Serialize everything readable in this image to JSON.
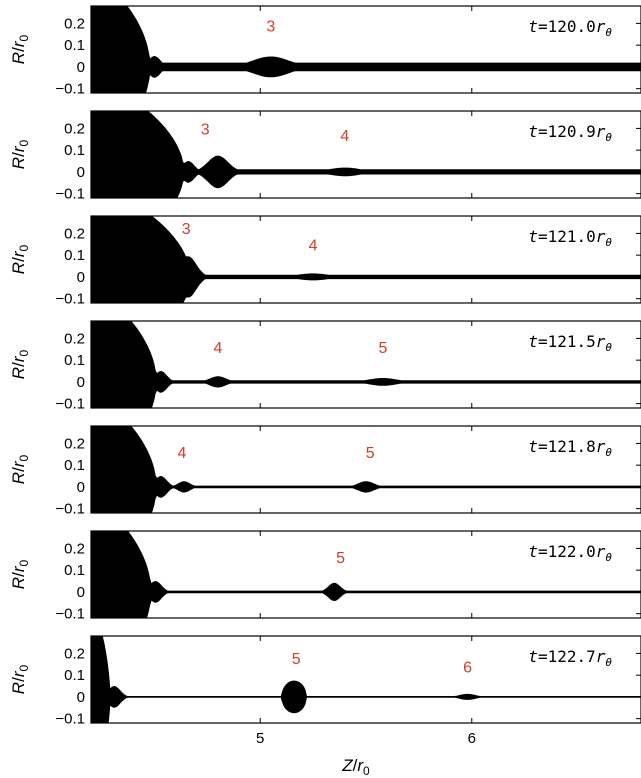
{
  "chart_data": {
    "type": "area",
    "layout": "stacked-panels",
    "xlabel_main": "Z",
    "xlabel_sub": "r",
    "xlabel_sub_index": "0",
    "ylabel_main": "R",
    "ylabel_sub": "r",
    "ylabel_sub_index": "0",
    "xlim": [
      4.2,
      6.8
    ],
    "ylim": [
      -0.12,
      0.28
    ],
    "x_ticks": [
      5,
      6
    ],
    "x_tick_labels": [
      "5",
      "6"
    ],
    "y_ticks": [
      -0.1,
      0,
      0.1,
      0.2
    ],
    "y_tick_labels": [
      "−0.1",
      "0",
      "0.1",
      "0.2"
    ],
    "fill_color": "#000000",
    "label_color": "#d93a2b",
    "time_unit_main": "r",
    "time_unit_sub": "θ",
    "panels": [
      {
        "time_prefix": "t=",
        "time_value": "120.0",
        "drop": {
          "top": 4.44,
          "bottom": 4.52,
          "base": 4.2,
          "waist": 0.02
        },
        "bulges": [
          {
            "z": 5.05,
            "r": 0.048,
            "w": 0.18
          }
        ],
        "labels": [
          {
            "text": "3",
            "z": 5.05,
            "y": 0.19
          }
        ]
      },
      {
        "time_prefix": "t=",
        "time_value": "120.9",
        "drop": {
          "top": 4.62,
          "bottom": 4.66,
          "base": 4.2,
          "waist": 0.012
        },
        "bulges": [
          {
            "z": 4.8,
            "r": 0.075,
            "w": 0.1
          },
          {
            "z": 5.4,
            "r": 0.02,
            "w": 0.16
          }
        ],
        "labels": [
          {
            "text": "3",
            "z": 4.74,
            "y": 0.2
          },
          {
            "text": "4",
            "z": 5.4,
            "y": 0.17
          }
        ]
      },
      {
        "time_prefix": "t=",
        "time_value": "121.0",
        "drop": {
          "top": 4.67,
          "bottom": 4.67,
          "base": 4.2,
          "waist": 0.01
        },
        "bulges": [
          {
            "z": 4.66,
            "r": 0.095,
            "w": 0.08
          },
          {
            "z": 5.25,
            "r": 0.016,
            "w": 0.16
          }
        ],
        "labels": [
          {
            "text": "3",
            "z": 4.65,
            "y": 0.225
          },
          {
            "text": "4",
            "z": 5.25,
            "y": 0.15
          }
        ]
      },
      {
        "time_prefix": "t=",
        "time_value": "121.5",
        "drop": {
          "top": 4.5,
          "bottom": 4.52,
          "base": 4.2,
          "waist": 0.008
        },
        "bulges": [
          {
            "z": 4.8,
            "r": 0.026,
            "w": 0.08
          },
          {
            "z": 5.58,
            "r": 0.018,
            "w": 0.14
          }
        ],
        "labels": [
          {
            "text": "4",
            "z": 4.8,
            "y": 0.16
          },
          {
            "text": "5",
            "z": 5.58,
            "y": 0.16
          }
        ]
      },
      {
        "time_prefix": "t=",
        "time_value": "121.8",
        "drop": {
          "top": 4.5,
          "bottom": 4.52,
          "base": 4.2,
          "waist": 0.006
        },
        "bulges": [
          {
            "z": 4.64,
            "r": 0.026,
            "w": 0.06
          },
          {
            "z": 5.5,
            "r": 0.026,
            "w": 0.08
          }
        ],
        "labels": [
          {
            "text": "4",
            "z": 4.63,
            "y": 0.16
          },
          {
            "text": "5",
            "z": 5.52,
            "y": 0.16
          }
        ]
      },
      {
        "time_prefix": "t=",
        "time_value": "122.0",
        "drop": {
          "top": 4.47,
          "bottom": 4.5,
          "base": 4.2,
          "waist": 0.006
        },
        "bulges": [
          {
            "z": 5.35,
            "r": 0.042,
            "w": 0.06
          }
        ],
        "labels": [
          {
            "text": "5",
            "z": 5.38,
            "y": 0.16
          }
        ]
      },
      {
        "time_prefix": "t=",
        "time_value": "122.7",
        "drop": {
          "top": 4.27,
          "bottom": 4.31,
          "base": 4.2,
          "waist": 0.004
        },
        "bulges": [
          {
            "z": 5.16,
            "r": 0.075,
            "w": 0.06,
            "shape": "sphere"
          },
          {
            "z": 5.98,
            "r": 0.014,
            "w": 0.08
          }
        ],
        "labels": [
          {
            "text": "5",
            "z": 5.17,
            "y": 0.18
          },
          {
            "text": "6",
            "z": 5.98,
            "y": 0.14
          }
        ]
      }
    ]
  }
}
